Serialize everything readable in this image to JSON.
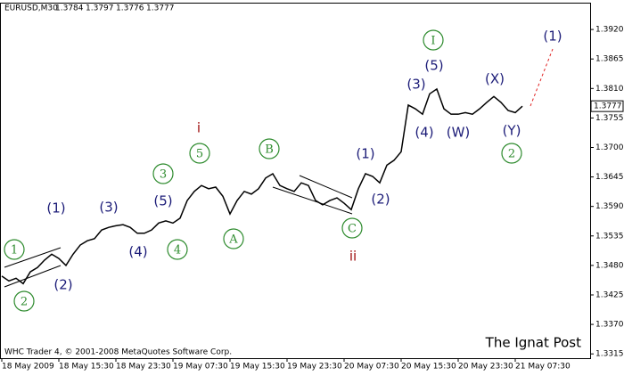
{
  "chart_data": {
    "type": "line",
    "symbol": "EURUSD,M30",
    "ohlc": [
      1.3784,
      1.3797,
      1.3776,
      1.3777
    ],
    "copyright": "WHC Trader 4, © 2001-2008 MetaQuotes Software Corp.",
    "watermark": "The Ignat Post",
    "last_price": 1.3777,
    "categories": [
      "18 May 2009",
      null,
      null,
      null,
      null,
      null,
      null,
      null,
      "18 May 15:30",
      null,
      null,
      null,
      null,
      null,
      null,
      null,
      "18 May 23:30",
      null,
      null,
      null,
      null,
      null,
      null,
      null,
      "19 May 07:30",
      null,
      null,
      null,
      null,
      null,
      null,
      null,
      "19 May 15:30",
      null,
      null,
      null,
      null,
      null,
      null,
      null,
      "19 May 23:30",
      null,
      null,
      null,
      null,
      null,
      null,
      null,
      "20 May 07:30",
      null,
      null,
      null,
      null,
      null,
      null,
      null,
      "20 May 15:30",
      null,
      null,
      null,
      null,
      null,
      null,
      null,
      "20 May 23:30",
      null,
      null,
      null,
      null,
      null,
      null,
      null,
      "21 May 07:30",
      null
    ],
    "series": [
      {
        "name": "EURUSD",
        "color": "#000000",
        "values": [
          1.346,
          1.3451,
          1.3456,
          1.3446,
          1.3468,
          1.3476,
          1.349,
          1.3501,
          1.3493,
          1.348,
          1.3501,
          1.3518,
          1.3526,
          1.353,
          1.3546,
          1.3551,
          1.3554,
          1.3556,
          1.3551,
          1.354,
          1.354,
          1.3546,
          1.3559,
          1.3563,
          1.3559,
          1.3568,
          1.3601,
          1.3618,
          1.3629,
          1.3623,
          1.3626,
          1.3609,
          1.3576,
          1.3601,
          1.3618,
          1.3613,
          1.3623,
          1.3643,
          1.3651,
          1.3629,
          1.3623,
          1.3618,
          1.3634,
          1.3629,
          1.3601,
          1.3593,
          1.3601,
          1.3606,
          1.3596,
          1.3584,
          1.3623,
          1.3651,
          1.3646,
          1.3634,
          1.3667,
          1.3676,
          1.3692,
          1.3779,
          1.3772,
          1.3762,
          1.38,
          1.3809,
          1.3772,
          1.3762,
          1.3762,
          1.3765,
          1.3762,
          1.3772,
          1.3784,
          1.3795,
          1.3784,
          1.3769,
          1.3765,
          1.3777
        ]
      }
    ],
    "ylim": [
      1.3307,
      1.397
    ],
    "yticks": [
      {
        "value": 1.392,
        "label": "1.3920"
      },
      {
        "value": 1.3865,
        "label": "1.3865"
      },
      {
        "value": 1.381,
        "label": "1.3810"
      },
      {
        "value": 1.3755,
        "label": "1.3755"
      },
      {
        "value": 1.37,
        "label": "1.3700"
      },
      {
        "value": 1.3645,
        "label": "1.3645"
      },
      {
        "value": 1.359,
        "label": "1.3590"
      },
      {
        "value": 1.3535,
        "label": "1.3535"
      },
      {
        "value": 1.348,
        "label": "1.3480"
      },
      {
        "value": 1.3425,
        "label": "1.3425"
      },
      {
        "value": 1.337,
        "label": "1.3370"
      },
      {
        "value": 1.3315,
        "label": "1.3315"
      }
    ],
    "annotations": [
      {
        "text": "1",
        "color": "#2e8b2e",
        "shape": "circle"
      },
      {
        "text": "2",
        "color": "#2e8b2e",
        "shape": "circle"
      },
      {
        "text": "(1)",
        "color": "#1c1c78"
      },
      {
        "text": "(2)",
        "color": "#1c1c78"
      },
      {
        "text": "(3)",
        "color": "#1c1c78"
      },
      {
        "text": "(4)",
        "color": "#1c1c78"
      },
      {
        "text": "(5)",
        "color": "#1c1c78"
      },
      {
        "text": "3",
        "color": "#2e8b2e",
        "shape": "circle"
      },
      {
        "text": "4",
        "color": "#2e8b2e",
        "shape": "circle"
      },
      {
        "text": "5",
        "color": "#2e8b2e",
        "shape": "circle"
      },
      {
        "text": "i",
        "color": "#a01010"
      },
      {
        "text": "A",
        "color": "#2e8b2e",
        "shape": "circle"
      },
      {
        "text": "B",
        "color": "#2e8b2e",
        "shape": "circle"
      },
      {
        "text": "(1)",
        "color": "#1c1c78"
      },
      {
        "text": "(2)",
        "color": "#1c1c78"
      },
      {
        "text": "C",
        "color": "#2e8b2e",
        "shape": "circle"
      },
      {
        "text": "ii",
        "color": "#a01010"
      },
      {
        "text": "(3)",
        "color": "#1c1c78"
      },
      {
        "text": "(4)",
        "color": "#1c1c78"
      },
      {
        "text": "(5)",
        "color": "#1c1c78"
      },
      {
        "text": "I",
        "color": "#2e8b2e",
        "shape": "circle"
      },
      {
        "text": "(W)",
        "color": "#1c1c78"
      },
      {
        "text": "(X)",
        "color": "#1c1c78"
      },
      {
        "text": "(Y)",
        "color": "#1c1c78"
      },
      {
        "text": "2",
        "color": "#2e8b2e",
        "shape": "circle"
      },
      {
        "text": "(1)",
        "color": "#1c1c78"
      }
    ]
  }
}
